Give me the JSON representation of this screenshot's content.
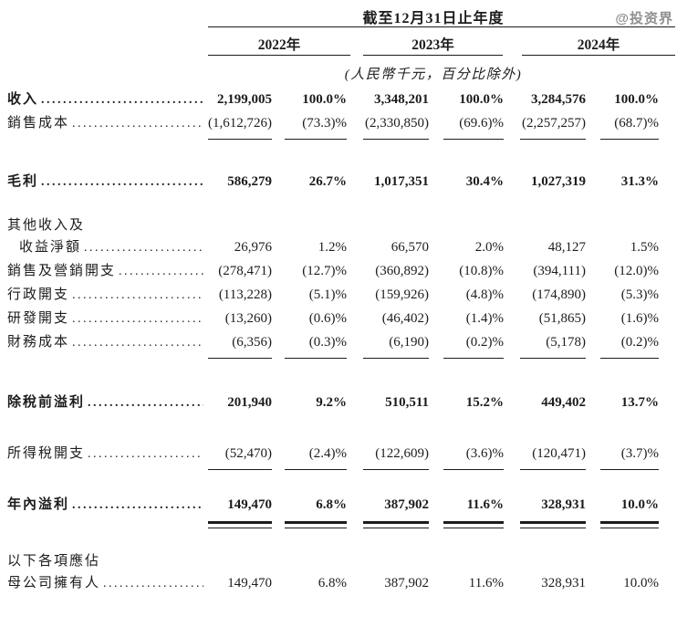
{
  "watermark": "@投资界",
  "header": {
    "period_title": "截至12月31日止年度",
    "years": [
      "2022年",
      "2023年",
      "2024年"
    ],
    "unit_note": "(人民幣千元，百分比除外)"
  },
  "table": {
    "leader_dots": "................................................................",
    "rows": [
      {
        "label": "收入",
        "leader": true,
        "bold": true,
        "values": [
          "2,199,005",
          "100.0%",
          "3,348,201",
          "100.0%",
          "3,284,576",
          "100.0%"
        ]
      },
      {
        "label": "銷售成本",
        "leader": true,
        "rule": "single",
        "values": [
          "(1,612,726)",
          "(73.3)%",
          "(2,330,850)",
          "(69.6)%",
          "(2,257,257)",
          "(68.7)%"
        ]
      },
      {
        "label": "毛利",
        "leader": true,
        "bold": true,
        "gap": "lg2",
        "values": [
          "586,279",
          "26.7%",
          "1,017,351",
          "30.4%",
          "1,027,319",
          "31.3%"
        ]
      },
      {
        "label": "其他收入及",
        "labelonly": true,
        "gap": "lg",
        "values": []
      },
      {
        "label": "收益淨額",
        "leader": true,
        "indent": true,
        "values": [
          "26,976",
          "1.2%",
          "66,570",
          "2.0%",
          "48,127",
          "1.5%"
        ]
      },
      {
        "label": "銷售及營銷開支",
        "leader": true,
        "values": [
          "(278,471)",
          "(12.7)%",
          "(360,892)",
          "(10.8)%",
          "(394,111)",
          "(12.0)%"
        ]
      },
      {
        "label": "行政開支",
        "leader": true,
        "values": [
          "(113,228)",
          "(5.1)%",
          "(159,926)",
          "(4.8)%",
          "(174,890)",
          "(5.3)%"
        ]
      },
      {
        "label": "研發開支",
        "leader": true,
        "values": [
          "(13,260)",
          "(0.6)%",
          "(46,402)",
          "(1.4)%",
          "(51,865)",
          "(1.6)%"
        ]
      },
      {
        "label": "財務成本",
        "leader": true,
        "rule": "single",
        "values": [
          "(6,356)",
          "(0.3)%",
          "(6,190)",
          "(0.2)%",
          "(5,178)",
          "(0.2)%"
        ]
      },
      {
        "label": "除稅前溢利",
        "leader": true,
        "bold": true,
        "gap": "pbt",
        "values": [
          "201,940",
          "9.2%",
          "510,511",
          "15.2%",
          "449,402",
          "13.7%"
        ]
      },
      {
        "label": "所得稅開支",
        "leader": true,
        "rule": "single",
        "gap": "tax",
        "values": [
          "(52,470)",
          "(2.4)%",
          "(122,609)",
          "(3.6)%",
          "(120,471)",
          "(3.7)%"
        ]
      },
      {
        "label": "年內溢利",
        "leader": true,
        "bold": true,
        "rule": "double",
        "gap": "npy",
        "values": [
          "149,470",
          "6.8%",
          "387,902",
          "11.6%",
          "328,931",
          "10.0%"
        ]
      },
      {
        "label": "以下各項應佔",
        "labelonly": true,
        "gap": "attr",
        "values": []
      },
      {
        "label": "母公司擁有人",
        "leader": true,
        "values": [
          "149,470",
          "6.8%",
          "387,902",
          "11.6%",
          "328,931",
          "10.0%"
        ]
      }
    ]
  }
}
